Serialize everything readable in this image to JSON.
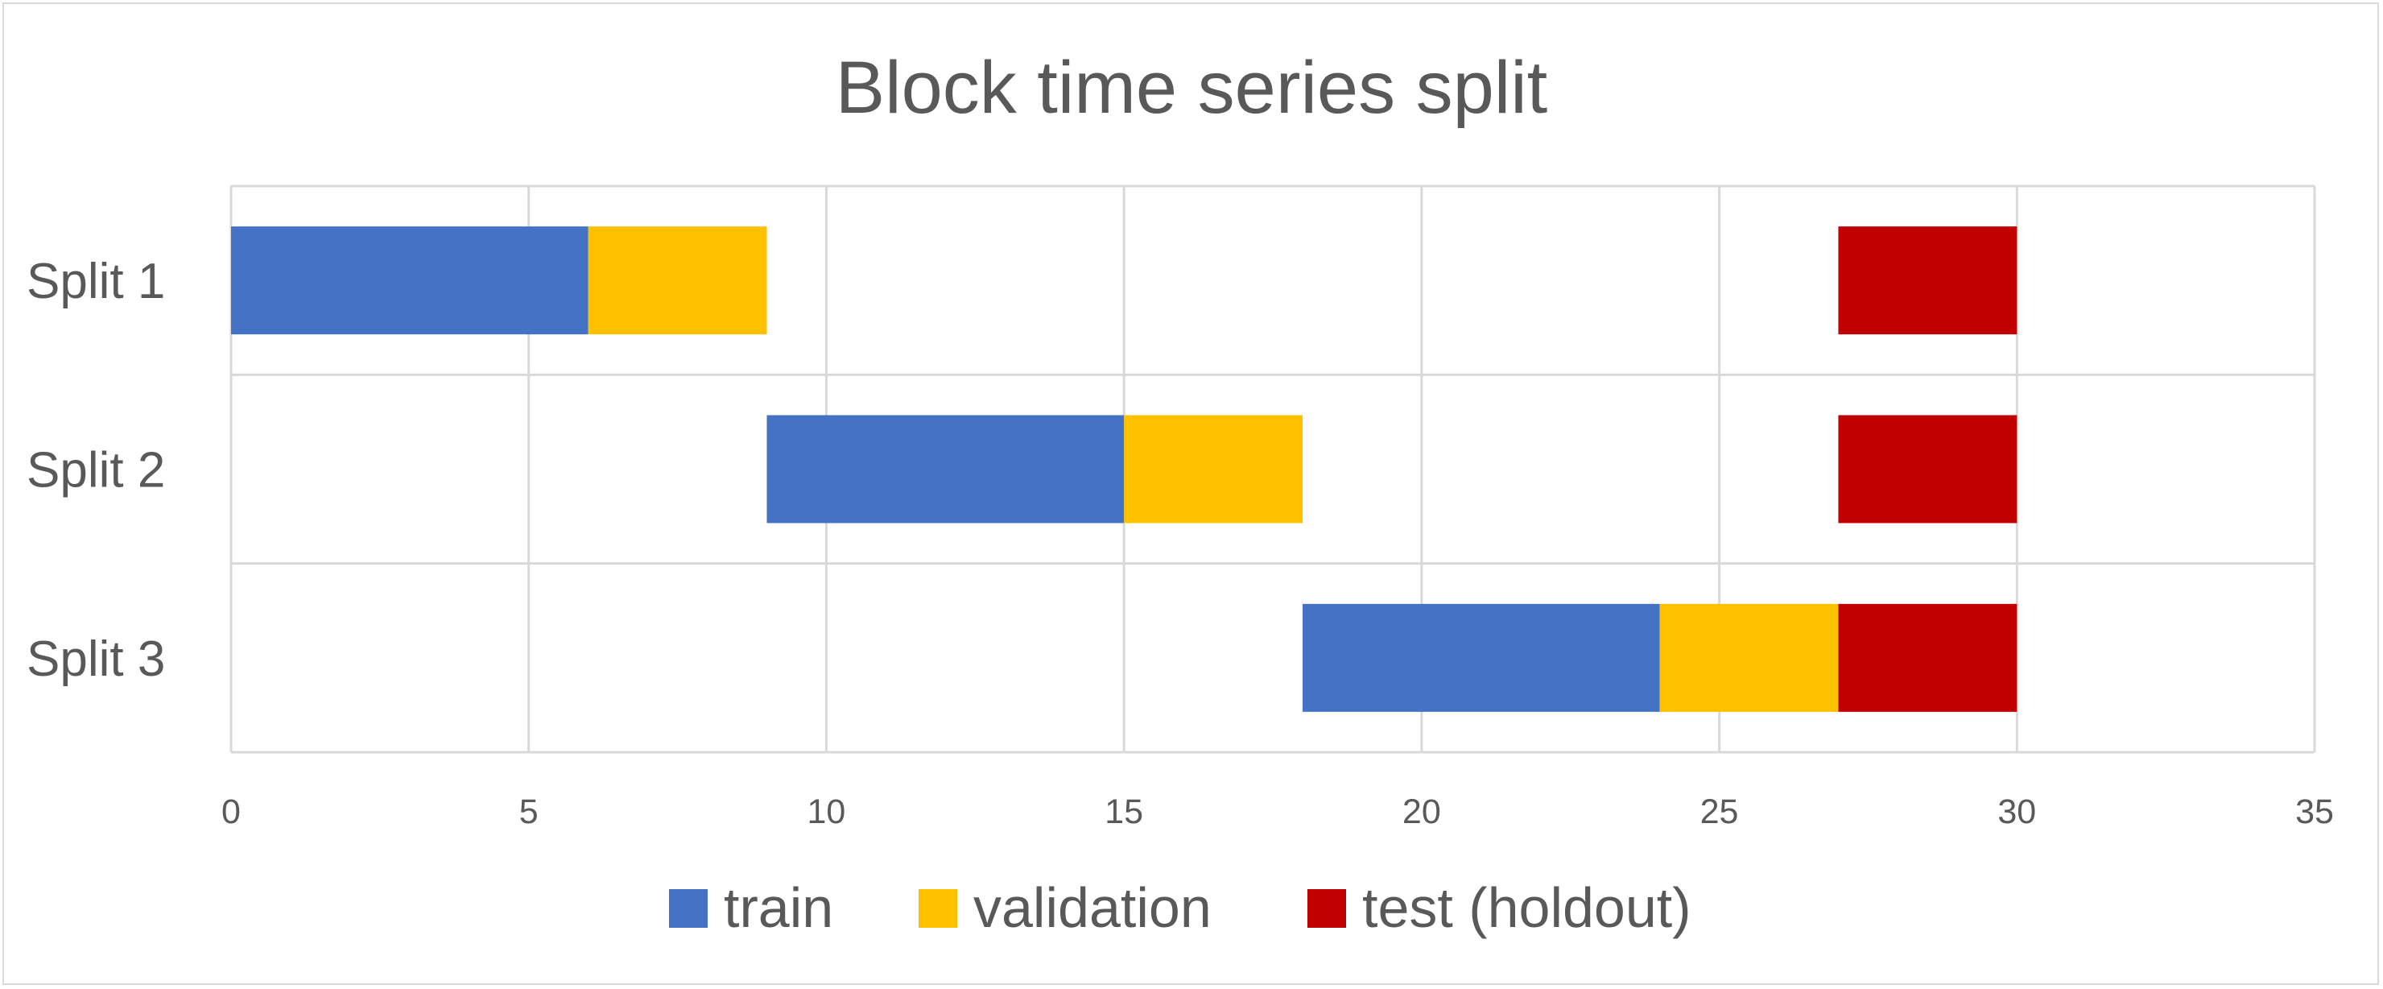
{
  "chart_data": {
    "type": "bar",
    "orientation": "horizontal",
    "stacked": true,
    "title": "Block time series split",
    "xlabel": "",
    "ylabel": "",
    "xlim": [
      0,
      35
    ],
    "x_ticks": [
      0,
      5,
      10,
      15,
      20,
      25,
      30,
      35
    ],
    "grid": true,
    "legend_position": "bottom",
    "categories": [
      "Split 1",
      "Split 2",
      "Split 3"
    ],
    "series": [
      {
        "name": "train",
        "color": "#4472c4",
        "segments": [
          {
            "category": "Split 1",
            "start": 0,
            "end": 6
          },
          {
            "category": "Split 2",
            "start": 9,
            "end": 15
          },
          {
            "category": "Split 3",
            "start": 18,
            "end": 24
          }
        ]
      },
      {
        "name": "validation",
        "color": "#ffc000",
        "segments": [
          {
            "category": "Split 1",
            "start": 6,
            "end": 9
          },
          {
            "category": "Split 2",
            "start": 15,
            "end": 18
          },
          {
            "category": "Split 3",
            "start": 24,
            "end": 27
          }
        ]
      },
      {
        "name": "test (holdout)",
        "color": "#c00000",
        "segments": [
          {
            "category": "Split 1",
            "start": 27,
            "end": 30
          },
          {
            "category": "Split 2",
            "start": 27,
            "end": 30
          },
          {
            "category": "Split 3",
            "start": 27,
            "end": 30
          }
        ]
      }
    ]
  }
}
